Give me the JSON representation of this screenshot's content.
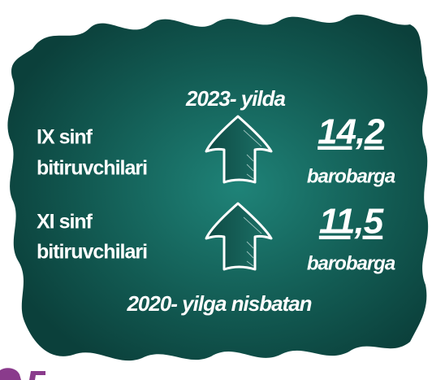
{
  "header": {
    "title": "2023- yilda"
  },
  "rows": [
    {
      "label": [
        "IX sinf",
        "bitiruvchilari"
      ],
      "value": "14,2",
      "unit": "barobarga"
    },
    {
      "label": [
        "XI sinf",
        "bitiruvchilari"
      ],
      "value": "11,5",
      "unit": "barobarga"
    }
  ],
  "footer": {
    "text": "2020- yilga nisbatan"
  }
}
